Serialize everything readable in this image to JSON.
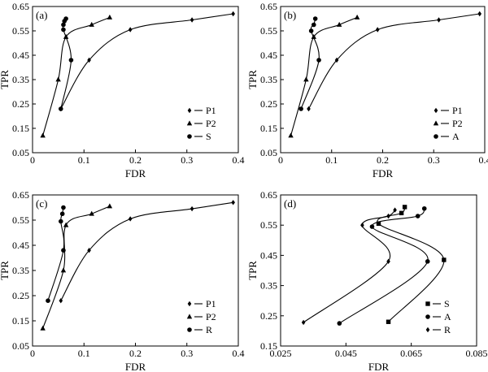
{
  "chart_data": [
    {
      "type": "line",
      "panel_label": "(a)",
      "xlabel": "FDR",
      "ylabel": "TPR",
      "xlim": [
        0,
        0.4
      ],
      "ylim": [
        0.05,
        0.65
      ],
      "xticks": [
        "0",
        "0.1",
        "0.2",
        "0.3",
        "0.4"
      ],
      "yticks": [
        "0.05",
        "0.15",
        "0.25",
        "0.35",
        "0.45",
        "0.55",
        "0.65"
      ],
      "legend_position": "bottom-right",
      "series": [
        {
          "name": "P1",
          "marker": "diamond",
          "points": [
            [
              0.055,
              0.23
            ],
            [
              0.11,
              0.43
            ],
            [
              0.19,
              0.555
            ],
            [
              0.31,
              0.595
            ],
            [
              0.39,
              0.62
            ]
          ]
        },
        {
          "name": "P2",
          "marker": "triangle",
          "points": [
            [
              0.02,
              0.12
            ],
            [
              0.05,
              0.35
            ],
            [
              0.065,
              0.525
            ],
            [
              0.115,
              0.575
            ],
            [
              0.15,
              0.605
            ]
          ]
        },
        {
          "name": "S",
          "marker": "circle",
          "points": [
            [
              0.055,
              0.23
            ],
            [
              0.075,
              0.43
            ],
            [
              0.06,
              0.555
            ],
            [
              0.06,
              0.575
            ],
            [
              0.062,
              0.59
            ],
            [
              0.065,
              0.6
            ]
          ]
        }
      ]
    },
    {
      "type": "line",
      "panel_label": "(b)",
      "xlabel": "FDR",
      "ylabel": "TPR",
      "xlim": [
        0,
        0.4
      ],
      "ylim": [
        0.05,
        0.65
      ],
      "xticks": [
        "0",
        "0.1",
        "0.2",
        "0.3",
        "0.4"
      ],
      "yticks": [
        "0.05",
        "0.15",
        "0.25",
        "0.35",
        "0.45",
        "0.55",
        "0.65"
      ],
      "legend_position": "bottom-right",
      "series": [
        {
          "name": "P1",
          "marker": "diamond",
          "points": [
            [
              0.055,
              0.23
            ],
            [
              0.11,
              0.43
            ],
            [
              0.19,
              0.555
            ],
            [
              0.31,
              0.595
            ],
            [
              0.39,
              0.62
            ]
          ]
        },
        {
          "name": "P2",
          "marker": "triangle",
          "points": [
            [
              0.02,
              0.12
            ],
            [
              0.05,
              0.35
            ],
            [
              0.065,
              0.525
            ],
            [
              0.115,
              0.575
            ],
            [
              0.15,
              0.605
            ]
          ]
        },
        {
          "name": "A",
          "marker": "circle",
          "points": [
            [
              0.04,
              0.23
            ],
            [
              0.075,
              0.43
            ],
            [
              0.06,
              0.55
            ],
            [
              0.065,
              0.575
            ],
            [
              0.068,
              0.6
            ]
          ]
        }
      ]
    },
    {
      "type": "line",
      "panel_label": "(c)",
      "xlabel": "FDR",
      "ylabel": "TPR",
      "xlim": [
        0,
        0.4
      ],
      "ylim": [
        0.05,
        0.65
      ],
      "xticks": [
        "0",
        "0.1",
        "0.2",
        "0.3",
        "0.4"
      ],
      "yticks": [
        "0.05",
        "0.15",
        "0.25",
        "0.35",
        "0.45",
        "0.55",
        "0.65"
      ],
      "legend_position": "bottom-right",
      "series": [
        {
          "name": "P1",
          "marker": "diamond",
          "points": [
            [
              0.055,
              0.23
            ],
            [
              0.11,
              0.43
            ],
            [
              0.19,
              0.555
            ],
            [
              0.31,
              0.595
            ],
            [
              0.39,
              0.62
            ]
          ]
        },
        {
          "name": "P2",
          "marker": "triangle",
          "points": [
            [
              0.02,
              0.12
            ],
            [
              0.06,
              0.35
            ],
            [
              0.065,
              0.53
            ],
            [
              0.115,
              0.575
            ],
            [
              0.15,
              0.605
            ]
          ]
        },
        {
          "name": "R",
          "marker": "circle",
          "points": [
            [
              0.03,
              0.23
            ],
            [
              0.06,
              0.43
            ],
            [
              0.055,
              0.545
            ],
            [
              0.058,
              0.575
            ],
            [
              0.06,
              0.6
            ]
          ]
        }
      ]
    },
    {
      "type": "line",
      "panel_label": "(d)",
      "xlabel": "FDR",
      "ylabel": "TPR",
      "xlim": [
        0.025,
        0.085
      ],
      "ylim": [
        0.15,
        0.65
      ],
      "xticks": [
        "0.025",
        "0.045",
        "0.065",
        "0.085"
      ],
      "yticks": [
        "0.15",
        "0.25",
        "0.35",
        "0.45",
        "0.55",
        "0.65"
      ],
      "legend_position": "bottom-right",
      "series": [
        {
          "name": "S",
          "marker": "square",
          "points": [
            [
              0.058,
              0.23
            ],
            [
              0.075,
              0.435
            ],
            [
              0.055,
              0.555
            ],
            [
              0.062,
              0.59
            ],
            [
              0.063,
              0.61
            ]
          ]
        },
        {
          "name": "A",
          "marker": "circle",
          "points": [
            [
              0.043,
              0.225
            ],
            [
              0.07,
              0.43
            ],
            [
              0.053,
              0.545
            ],
            [
              0.067,
              0.58
            ],
            [
              0.069,
              0.605
            ]
          ]
        },
        {
          "name": "R",
          "marker": "diamond",
          "points": [
            [
              0.032,
              0.228
            ],
            [
              0.058,
              0.43
            ],
            [
              0.05,
              0.55
            ],
            [
              0.058,
              0.58
            ],
            [
              0.06,
              0.6
            ]
          ]
        }
      ]
    }
  ]
}
